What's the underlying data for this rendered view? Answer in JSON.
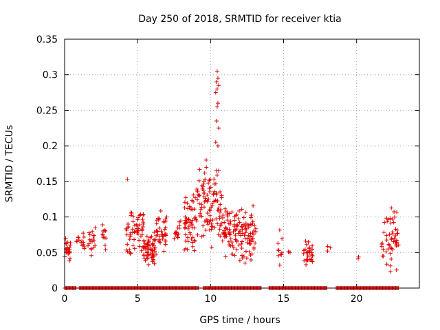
{
  "chart_data": {
    "type": "scatter",
    "title": "Day 250 of 2018, SRMTID for receiver ktia",
    "xlabel": "GPS time / hours",
    "ylabel": "SRMTID / TECUs",
    "xlim": [
      0,
      24.3
    ],
    "ylim": [
      0,
      0.35
    ],
    "x_ticks": [
      0,
      5,
      10,
      15,
      20
    ],
    "x_tick_labels": [
      "0",
      "5",
      "10",
      "15",
      "20"
    ],
    "y_ticks": [
      0,
      0.05,
      0.1,
      0.15,
      0.2,
      0.25,
      0.3,
      0.35
    ],
    "y_tick_labels": [
      "0",
      "0.05",
      "0.1",
      "0.15",
      "0.2",
      "0.25",
      "0.3",
      "0.35"
    ],
    "grid": true,
    "marker": "+",
    "color": "#e00000",
    "zero_baseline_intervals": [
      [
        0,
        0.8
      ],
      [
        1.0,
        9.2
      ],
      [
        9.5,
        13.5
      ],
      [
        14.0,
        18.0
      ],
      [
        18.6,
        22.9
      ]
    ],
    "clusters": [
      {
        "x_range": [
          0.0,
          0.4
        ],
        "y_range": [
          0.03,
          0.08
        ],
        "count": 25
      },
      {
        "x_range": [
          0.8,
          1.4
        ],
        "y_range": [
          0.04,
          0.09
        ],
        "count": 14
      },
      {
        "x_range": [
          1.6,
          2.2
        ],
        "y_range": [
          0.04,
          0.09
        ],
        "count": 18
      },
      {
        "x_range": [
          2.5,
          2.9
        ],
        "y_range": [
          0.05,
          0.1
        ],
        "count": 12
      },
      {
        "x_range": [
          4.2,
          5.4
        ],
        "y_range": [
          0.04,
          0.12
        ],
        "count": 60
      },
      {
        "x_range": [
          5.4,
          6.2
        ],
        "y_range": [
          0.03,
          0.08
        ],
        "count": 60
      },
      {
        "x_range": [
          6.2,
          7.0
        ],
        "y_range": [
          0.04,
          0.11
        ],
        "count": 40
      },
      {
        "x_range": [
          7.5,
          8.0
        ],
        "y_range": [
          0.06,
          0.1
        ],
        "count": 15
      },
      {
        "x_range": [
          8.2,
          9.0
        ],
        "y_range": [
          0.05,
          0.14
        ],
        "count": 55
      },
      {
        "x_range": [
          9.0,
          10.0
        ],
        "y_range": [
          0.06,
          0.18
        ],
        "count": 60
      },
      {
        "x_range": [
          10.0,
          10.8
        ],
        "y_range": [
          0.05,
          0.17
        ],
        "count": 45
      },
      {
        "x_range": [
          10.8,
          12.0
        ],
        "y_range": [
          0.04,
          0.12
        ],
        "count": 70
      },
      {
        "x_range": [
          12.0,
          13.1
        ],
        "y_range": [
          0.03,
          0.12
        ],
        "count": 65
      },
      {
        "x_range": [
          14.6,
          14.9
        ],
        "y_range": [
          0.02,
          0.09
        ],
        "count": 10
      },
      {
        "x_range": [
          15.3,
          15.6
        ],
        "y_range": [
          0.045,
          0.055
        ],
        "count": 3
      },
      {
        "x_range": [
          16.3,
          17.0
        ],
        "y_range": [
          0.03,
          0.07
        ],
        "count": 30
      },
      {
        "x_range": [
          18.0,
          18.4
        ],
        "y_range": [
          0.05,
          0.06
        ],
        "count": 3
      },
      {
        "x_range": [
          20.1,
          20.3
        ],
        "y_range": [
          0.035,
          0.055
        ],
        "count": 2
      },
      {
        "x_range": [
          21.7,
          22.9
        ],
        "y_range": [
          0.02,
          0.12
        ],
        "count": 55
      }
    ],
    "notable_points": [
      {
        "x": 10.45,
        "y": 0.305
      },
      {
        "x": 10.5,
        "y": 0.295
      },
      {
        "x": 10.4,
        "y": 0.29
      },
      {
        "x": 10.55,
        "y": 0.285
      },
      {
        "x": 10.45,
        "y": 0.28
      },
      {
        "x": 10.35,
        "y": 0.275
      },
      {
        "x": 10.5,
        "y": 0.26
      },
      {
        "x": 10.45,
        "y": 0.255
      },
      {
        "x": 10.4,
        "y": 0.235
      },
      {
        "x": 10.55,
        "y": 0.225
      },
      {
        "x": 10.35,
        "y": 0.205
      },
      {
        "x": 10.5,
        "y": 0.2
      },
      {
        "x": 10.4,
        "y": 0.165
      },
      {
        "x": 10.55,
        "y": 0.165
      },
      {
        "x": 4.3,
        "y": 0.153
      },
      {
        "x": 9.7,
        "y": 0.18
      }
    ]
  }
}
